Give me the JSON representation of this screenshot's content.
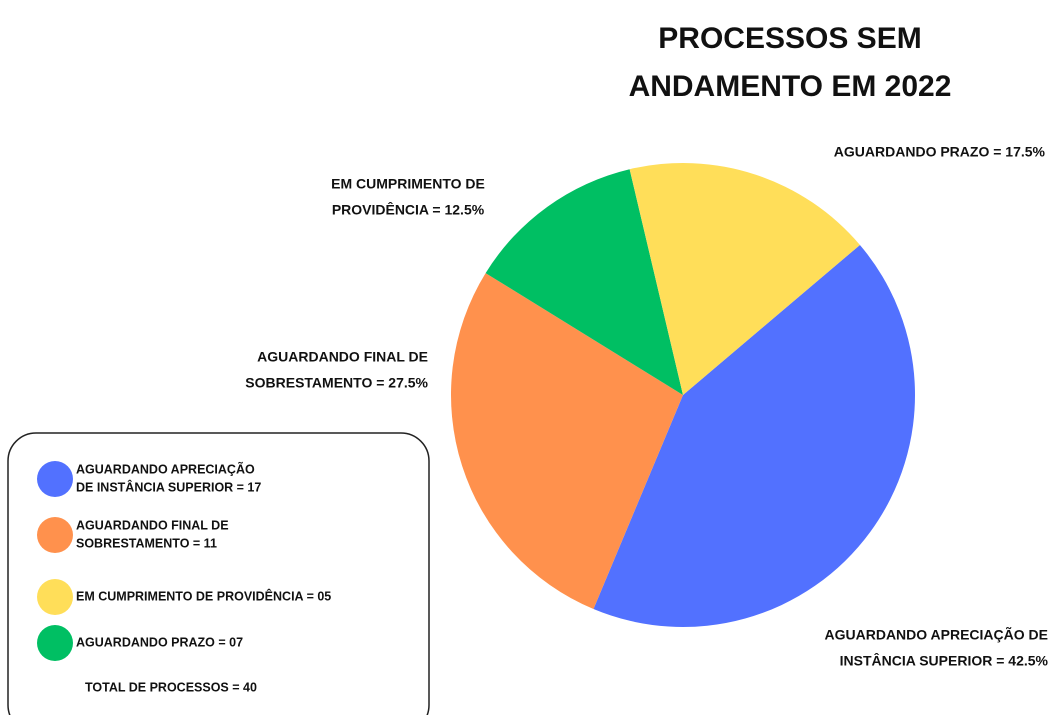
{
  "chart_data": {
    "type": "pie",
    "title": [
      "PROCESSOS SEM",
      "ANDAMENTO EM 2022"
    ],
    "values": [
      42.5,
      27.5,
      12.5,
      17.5
    ],
    "value_labels": [
      [
        "AGUARDANDO APRECIAÇÃO DE",
        "INSTÂNCIA SUPERIOR = 42.5%"
      ],
      [
        "AGUARDANDO FINAL DE",
        "SOBRESTAMENTO = 27.5%"
      ],
      [
        "EM CUMPRIMENTO DE",
        "PROVIDÊNCIA = 12.5%"
      ],
      [
        "AGUARDANDO PRAZO = 17.5%"
      ]
    ],
    "colors": [
      "#5271ff",
      "#ff914d",
      "#00bf63",
      "#ffde59"
    ],
    "counts": [
      17,
      11,
      7,
      5
    ],
    "count_labels": [
      [
        "AGUARDANDO APRECIAÇÃO",
        "DE INSTÂNCIA SUPERIOR = 17"
      ],
      [
        "AGUARDANDO FINAL DE",
        "SOBRESTAMENTO = 11"
      ],
      [
        "AGUARDANDO PRAZO = 07"
      ],
      [
        "EM CUMPRIMENTO DE PROVIDÊNCIA = 05"
      ]
    ],
    "legend_order": [
      0,
      1,
      3,
      2
    ],
    "total": 40,
    "total_label": "TOTAL DE PROCESSOS = 40"
  }
}
